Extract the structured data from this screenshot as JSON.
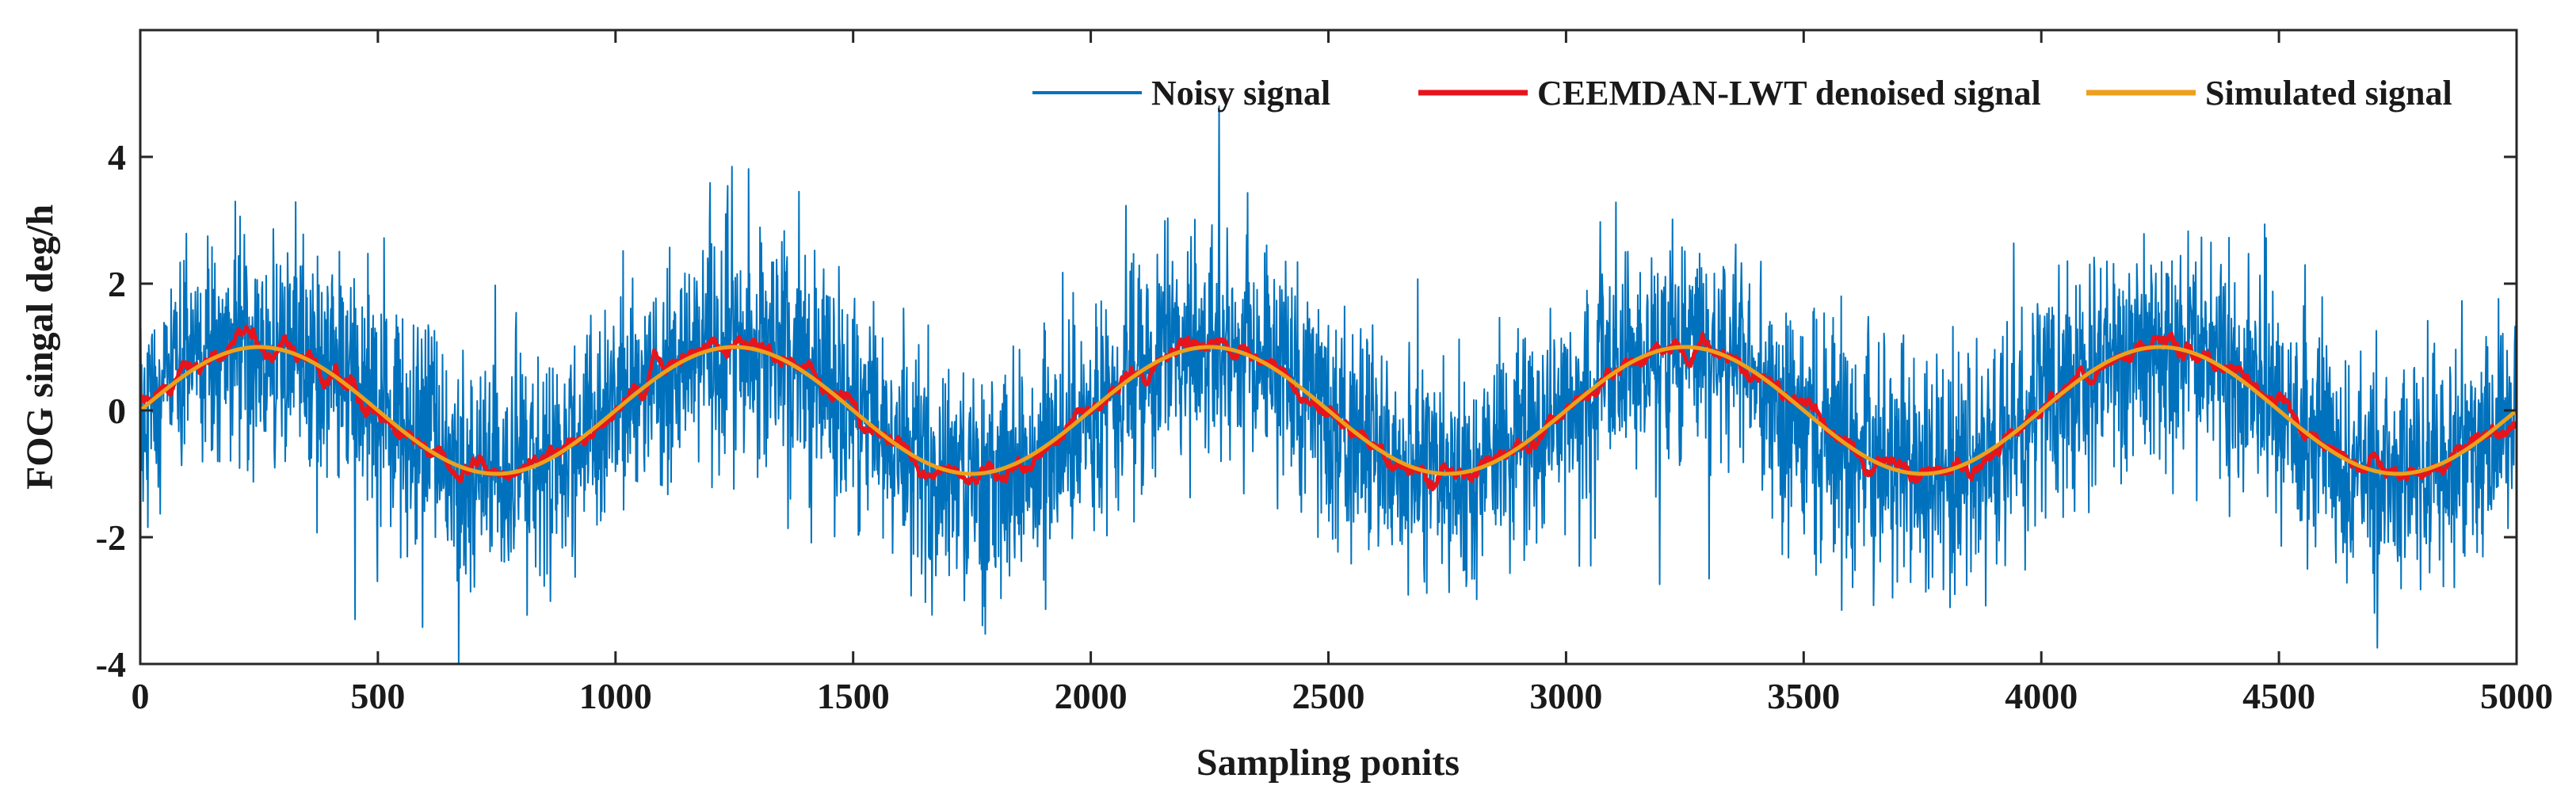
{
  "chart_data": {
    "type": "line",
    "title": "",
    "xlabel": "Sampling ponits",
    "ylabel": "FOG singal deg/h",
    "xlim": [
      0,
      5000
    ],
    "ylim": [
      -4,
      6
    ],
    "xticks": [
      0,
      500,
      1000,
      1500,
      2000,
      2500,
      3000,
      3500,
      4000,
      4500,
      5000
    ],
    "yticks": [
      -4,
      -2,
      0,
      2,
      4
    ],
    "grid": false,
    "legend_position": "top-right",
    "series": [
      {
        "name": "Noisy signal",
        "color": "#0072BD",
        "description_values": "sin(2*pi*x/1000) + white noise (std ~0.9), 5000 samples",
        "n_points": 5000,
        "noise_std": 0.9,
        "period": 1000,
        "amplitude": 1,
        "max_value": 4.8,
        "min_value": -4.0
      },
      {
        "name": "CEEMDAN-LWT denoised signal",
        "color": "#E8141C",
        "n_points": 5000,
        "period": 1000,
        "amplitude": 1,
        "residual_std": 0.15
      },
      {
        "name": "Simulated signal",
        "color": "#EDA01C",
        "x": [
          0,
          250,
          500,
          750,
          1000,
          1250,
          1500,
          1750,
          2000,
          2250,
          2500,
          2750,
          3000,
          3250,
          3500,
          3750,
          4000,
          4250,
          4500,
          4750,
          5000
        ],
        "values": [
          0,
          1,
          0,
          -1,
          0,
          1,
          0,
          -1,
          0,
          1,
          0,
          -1,
          0,
          1,
          0,
          -1,
          0,
          1,
          0,
          -1,
          0
        ],
        "formula": "sin(2*pi*x/1000)"
      }
    ]
  }
}
